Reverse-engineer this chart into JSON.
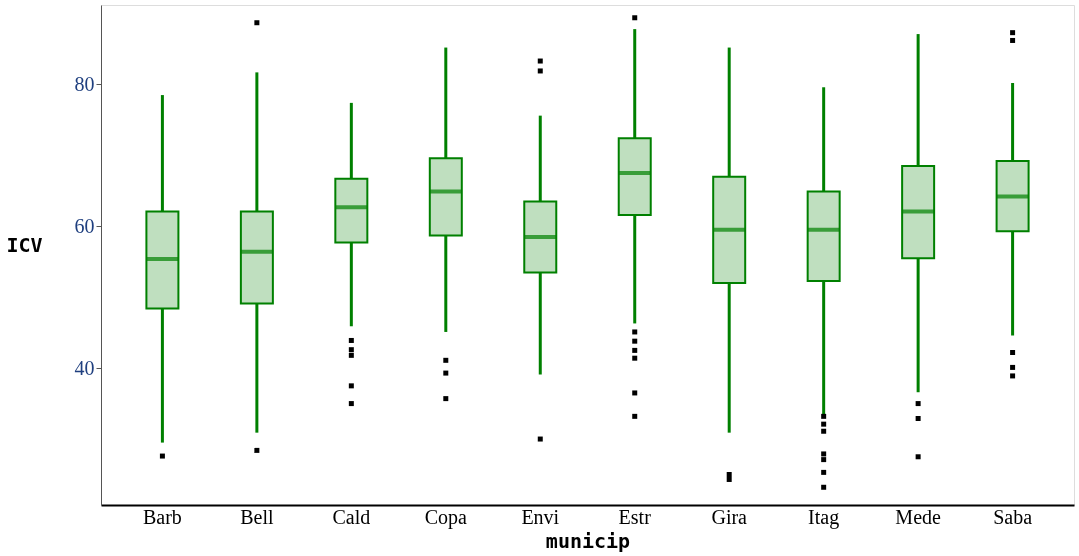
{
  "chart_data": {
    "type": "box",
    "xlabel": "municip",
    "ylabel": "ICV",
    "categories": [
      "Barb",
      "Bell",
      "Cald",
      "Copa",
      "Envi",
      "Estr",
      "Gira",
      "Itag",
      "Mede",
      "Saba"
    ],
    "ylim": [
      20.7,
      91.2
    ],
    "yticks": [
      40,
      60,
      80
    ],
    "grid": false,
    "legend": false,
    "series": [
      {
        "color": "#008000",
        "boxes": [
          {
            "low": 29.5,
            "q1": 48.4,
            "median": 55.4,
            "q3": 62.1,
            "high": 78.5,
            "outliers": [
              27.6
            ]
          },
          {
            "low": 30.9,
            "q1": 49.1,
            "median": 56.4,
            "q3": 62.1,
            "high": 81.7,
            "outliers": [
              88.7,
              28.4
            ]
          },
          {
            "low": 45.9,
            "q1": 57.7,
            "median": 62.7,
            "q3": 66.7,
            "high": 77.4,
            "outliers": [
              43.9,
              42.6,
              41.8,
              37.5,
              35.0
            ]
          },
          {
            "low": 45.1,
            "q1": 58.7,
            "median": 64.9,
            "q3": 69.6,
            "high": 85.2,
            "outliers": [
              41.1,
              39.3,
              35.7
            ]
          },
          {
            "low": 39.1,
            "q1": 53.5,
            "median": 58.5,
            "q3": 63.5,
            "high": 75.6,
            "outliers": [
              83.3,
              81.9,
              30.0
            ]
          },
          {
            "low": 46.3,
            "q1": 61.6,
            "median": 67.5,
            "q3": 72.4,
            "high": 87.8,
            "outliers": [
              89.4,
              45.1,
              43.8,
              42.5,
              41.4,
              36.5,
              33.2
            ]
          },
          {
            "low": 30.9,
            "q1": 52.0,
            "median": 59.5,
            "q3": 67.0,
            "high": 85.2,
            "outliers": [
              25.0,
              24.3
            ]
          },
          {
            "low": 33.5,
            "q1": 52.3,
            "median": 59.5,
            "q3": 64.9,
            "high": 79.6,
            "outliers": [
              33.2,
              32.1,
              31.1,
              27.9,
              27.1,
              25.3,
              23.2
            ]
          },
          {
            "low": 36.6,
            "q1": 55.5,
            "median": 62.1,
            "q3": 68.5,
            "high": 87.1,
            "outliers": [
              35.0,
              32.9,
              27.5
            ]
          },
          {
            "low": 44.6,
            "q1": 59.3,
            "median": 64.2,
            "q3": 69.2,
            "high": 80.2,
            "outliers": [
              87.3,
              86.2,
              42.2,
              40.1,
              38.9
            ]
          }
        ]
      }
    ]
  }
}
